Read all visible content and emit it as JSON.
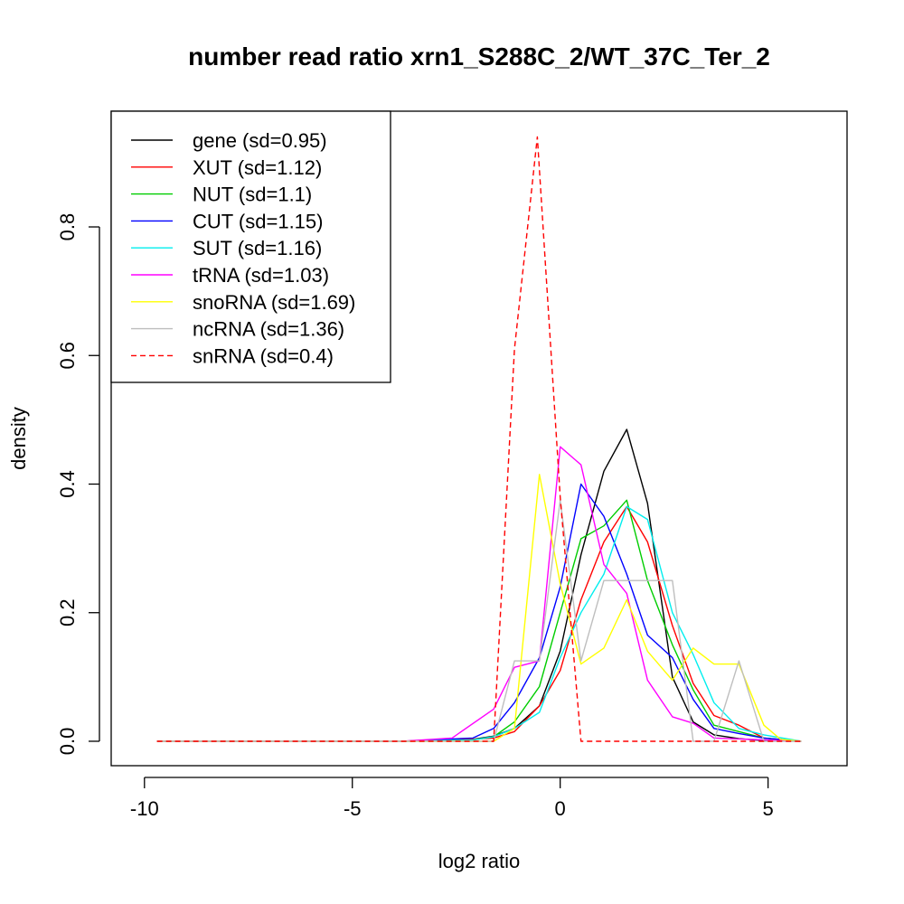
{
  "chart_data": {
    "type": "line",
    "title": "number read ratio xrn1_S288C_2/WT_37C_Ter_2",
    "xlabel": "log2 ratio",
    "ylabel": "density",
    "xlim": [
      -10.8,
      6.9
    ],
    "ylim": [
      -0.038,
      0.98
    ],
    "x_ticks": [
      -10,
      -5,
      0,
      5
    ],
    "x_tick_labels": [
      "-10",
      "-5",
      "0",
      "5"
    ],
    "y_ticks": [
      0.0,
      0.2,
      0.4,
      0.6,
      0.8
    ],
    "y_tick_labels": [
      "0.0",
      "0.2",
      "0.4",
      "0.6",
      "0.8"
    ],
    "grid": false,
    "legend_position": "top-left",
    "series": [
      {
        "name": "gene (sd=0.95)",
        "color": "#000000",
        "dash": false,
        "points": [
          [
            -9.7,
            0
          ],
          [
            -3.8,
            0
          ],
          [
            -2.1,
            0.003
          ],
          [
            -1.6,
            0.008
          ],
          [
            -1.1,
            0.02
          ],
          [
            -0.5,
            0.055
          ],
          [
            0,
            0.14
          ],
          [
            0.5,
            0.29
          ],
          [
            1.05,
            0.42
          ],
          [
            1.6,
            0.485
          ],
          [
            2.1,
            0.37
          ],
          [
            2.7,
            0.1
          ],
          [
            3.2,
            0.03
          ],
          [
            3.7,
            0.01
          ],
          [
            4.3,
            0.004
          ],
          [
            4.9,
            0.001
          ],
          [
            5.8,
            0
          ]
        ]
      },
      {
        "name": "XUT (sd=1.12)",
        "color": "#ff0000",
        "dash": false,
        "points": [
          [
            -9.7,
            0
          ],
          [
            -3.8,
            0
          ],
          [
            -2.1,
            0.003
          ],
          [
            -1.6,
            0.005
          ],
          [
            -1.1,
            0.015
          ],
          [
            -0.5,
            0.055
          ],
          [
            0,
            0.11
          ],
          [
            0.5,
            0.22
          ],
          [
            1.05,
            0.31
          ],
          [
            1.6,
            0.365
          ],
          [
            2.1,
            0.31
          ],
          [
            2.7,
            0.18
          ],
          [
            3.2,
            0.09
          ],
          [
            3.7,
            0.04
          ],
          [
            4.3,
            0.025
          ],
          [
            4.9,
            0.005
          ],
          [
            5.8,
            0
          ]
        ]
      },
      {
        "name": "NUT (sd=1.1)",
        "color": "#00cd00",
        "dash": false,
        "points": [
          [
            -9.7,
            0
          ],
          [
            -3.8,
            0
          ],
          [
            -2.1,
            0.002
          ],
          [
            -1.6,
            0.007
          ],
          [
            -1.1,
            0.03
          ],
          [
            -0.5,
            0.085
          ],
          [
            0,
            0.2
          ],
          [
            0.5,
            0.315
          ],
          [
            1.05,
            0.335
          ],
          [
            1.6,
            0.375
          ],
          [
            2.1,
            0.25
          ],
          [
            2.7,
            0.15
          ],
          [
            3.2,
            0.08
          ],
          [
            3.7,
            0.025
          ],
          [
            4.3,
            0.015
          ],
          [
            4.9,
            0.005
          ],
          [
            5.8,
            0
          ]
        ]
      },
      {
        "name": "CUT (sd=1.15)",
        "color": "#0000ff",
        "dash": false,
        "points": [
          [
            -9.7,
            0
          ],
          [
            -3.8,
            0
          ],
          [
            -2.1,
            0.005
          ],
          [
            -1.6,
            0.02
          ],
          [
            -1.1,
            0.06
          ],
          [
            -0.5,
            0.13
          ],
          [
            0,
            0.24
          ],
          [
            0.5,
            0.4
          ],
          [
            1.05,
            0.35
          ],
          [
            1.6,
            0.26
          ],
          [
            2.1,
            0.165
          ],
          [
            2.7,
            0.13
          ],
          [
            3.2,
            0.065
          ],
          [
            3.7,
            0.02
          ],
          [
            4.3,
            0.012
          ],
          [
            4.9,
            0.005
          ],
          [
            5.8,
            0
          ]
        ]
      },
      {
        "name": "SUT (sd=1.16)",
        "color": "#00eeee",
        "dash": false,
        "points": [
          [
            -9.7,
            0
          ],
          [
            -3.8,
            0
          ],
          [
            -2.1,
            0.002
          ],
          [
            -1.6,
            0.007
          ],
          [
            -1.1,
            0.02
          ],
          [
            -0.5,
            0.045
          ],
          [
            0,
            0.13
          ],
          [
            0.5,
            0.2
          ],
          [
            1.05,
            0.26
          ],
          [
            1.6,
            0.365
          ],
          [
            2.1,
            0.345
          ],
          [
            2.7,
            0.2
          ],
          [
            3.2,
            0.135
          ],
          [
            3.7,
            0.06
          ],
          [
            4.3,
            0.02
          ],
          [
            4.9,
            0.01
          ],
          [
            5.8,
            0
          ]
        ]
      },
      {
        "name": "tRNA (sd=1.03)",
        "color": "#ff00ff",
        "dash": false,
        "points": [
          [
            -9.7,
            0
          ],
          [
            -3.8,
            0
          ],
          [
            -2.6,
            0.005
          ],
          [
            -1.6,
            0.05
          ],
          [
            -1.1,
            0.115
          ],
          [
            -0.5,
            0.125
          ],
          [
            0,
            0.458
          ],
          [
            0.5,
            0.43
          ],
          [
            1.05,
            0.275
          ],
          [
            1.6,
            0.23
          ],
          [
            2.1,
            0.095
          ],
          [
            2.7,
            0.038
          ],
          [
            3.2,
            0.028
          ],
          [
            3.7,
            0.005
          ],
          [
            5.8,
            0
          ]
        ]
      },
      {
        "name": "snoRNA (sd=1.69)",
        "color": "#ffff00",
        "dash": false,
        "points": [
          [
            -9.7,
            0
          ],
          [
            -1.6,
            0
          ],
          [
            -1.1,
            0.02
          ],
          [
            -0.5,
            0.415
          ],
          [
            0,
            0.245
          ],
          [
            0.5,
            0.12
          ],
          [
            1.05,
            0.145
          ],
          [
            1.6,
            0.22
          ],
          [
            2.1,
            0.14
          ],
          [
            2.7,
            0.095
          ],
          [
            3.2,
            0.145
          ],
          [
            3.7,
            0.12
          ],
          [
            4.3,
            0.12
          ],
          [
            4.9,
            0.025
          ],
          [
            5.3,
            0.003
          ],
          [
            5.8,
            0
          ]
        ]
      },
      {
        "name": "ncRNA (sd=1.36)",
        "color": "#bebebe",
        "dash": false,
        "points": [
          [
            -9.7,
            0
          ],
          [
            -1.6,
            0
          ],
          [
            -1.1,
            0.125
          ],
          [
            -0.5,
            0.125
          ],
          [
            0,
            0.375
          ],
          [
            0.5,
            0.125
          ],
          [
            1.05,
            0.25
          ],
          [
            1.6,
            0.25
          ],
          [
            2.1,
            0.25
          ],
          [
            2.7,
            0.25
          ],
          [
            3.2,
            0
          ],
          [
            3.7,
            0
          ],
          [
            4.3,
            0.125
          ],
          [
            4.9,
            0
          ],
          [
            5.8,
            0
          ]
        ]
      },
      {
        "name": "snRNA (sd=0.4)",
        "color": "#ff0000",
        "dash": true,
        "points": [
          [
            -9.7,
            0
          ],
          [
            -1.6,
            0
          ],
          [
            -1.1,
            0.61
          ],
          [
            -0.55,
            0.94
          ],
          [
            0,
            0.38
          ],
          [
            0.5,
            0
          ],
          [
            5.8,
            0
          ]
        ]
      }
    ]
  }
}
